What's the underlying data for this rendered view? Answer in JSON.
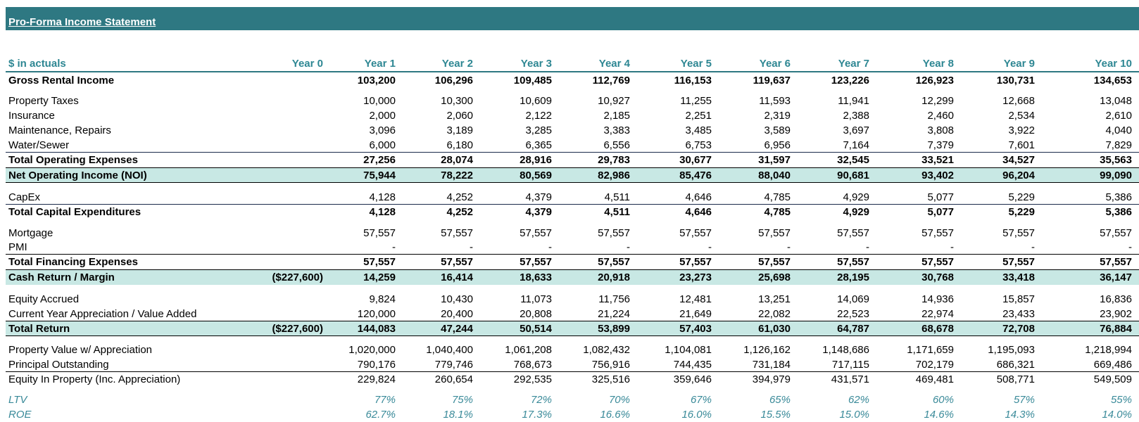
{
  "title": "Pro-Forma Income Statement",
  "header": {
    "label": "$ in actuals",
    "years": [
      "Year 0",
      "Year 1",
      "Year 2",
      "Year 3",
      "Year 4",
      "Year 5",
      "Year 6",
      "Year 7",
      "Year 8",
      "Year 9",
      "Year 10"
    ]
  },
  "rows": [
    {
      "key": "gross_rental_income",
      "label": "Gross Rental Income",
      "values": [
        "",
        "103,200",
        "106,296",
        "109,485",
        "112,769",
        "116,153",
        "119,637",
        "123,226",
        "126,923",
        "130,731",
        "134,653"
      ]
    },
    {
      "key": "property_taxes",
      "label": "Property Taxes",
      "values": [
        "",
        "10,000",
        "10,300",
        "10,609",
        "10,927",
        "11,255",
        "11,593",
        "11,941",
        "12,299",
        "12,668",
        "13,048"
      ]
    },
    {
      "key": "insurance",
      "label": "Insurance",
      "values": [
        "",
        "2,000",
        "2,060",
        "2,122",
        "2,185",
        "2,251",
        "2,319",
        "2,388",
        "2,460",
        "2,534",
        "2,610"
      ]
    },
    {
      "key": "maintenance_repairs",
      "label": "Maintenance, Repairs",
      "values": [
        "",
        "3,096",
        "3,189",
        "3,285",
        "3,383",
        "3,485",
        "3,589",
        "3,697",
        "3,808",
        "3,922",
        "4,040"
      ]
    },
    {
      "key": "water_sewer",
      "label": "Water/Sewer",
      "values": [
        "",
        "6,000",
        "6,180",
        "6,365",
        "6,556",
        "6,753",
        "6,956",
        "7,164",
        "7,379",
        "7,601",
        "7,829"
      ]
    },
    {
      "key": "total_operating_expenses",
      "label": "Total Operating Expenses",
      "values": [
        "",
        "27,256",
        "28,074",
        "28,916",
        "29,783",
        "30,677",
        "31,597",
        "32,545",
        "33,521",
        "34,527",
        "35,563"
      ]
    },
    {
      "key": "noi",
      "label": "Net Operating Income (NOI)",
      "values": [
        "",
        "75,944",
        "78,222",
        "80,569",
        "82,986",
        "85,476",
        "88,040",
        "90,681",
        "93,402",
        "96,204",
        "99,090"
      ]
    },
    {
      "key": "capex",
      "label": "CapEx",
      "values": [
        "",
        "4,128",
        "4,252",
        "4,379",
        "4,511",
        "4,646",
        "4,785",
        "4,929",
        "5,077",
        "5,229",
        "5,386"
      ]
    },
    {
      "key": "total_capex",
      "label": "Total Capital Expenditures",
      "values": [
        "",
        "4,128",
        "4,252",
        "4,379",
        "4,511",
        "4,646",
        "4,785",
        "4,929",
        "5,077",
        "5,229",
        "5,386"
      ]
    },
    {
      "key": "mortgage",
      "label": "Mortgage",
      "values": [
        "",
        "57,557",
        "57,557",
        "57,557",
        "57,557",
        "57,557",
        "57,557",
        "57,557",
        "57,557",
        "57,557",
        "57,557"
      ]
    },
    {
      "key": "pmi",
      "label": "PMI",
      "values": [
        "",
        "-",
        "-",
        "-",
        "-",
        "-",
        "-",
        "-",
        "-",
        "-",
        "-"
      ]
    },
    {
      "key": "total_financing",
      "label": "Total Financing Expenses",
      "values": [
        "",
        "57,557",
        "57,557",
        "57,557",
        "57,557",
        "57,557",
        "57,557",
        "57,557",
        "57,557",
        "57,557",
        "57,557"
      ]
    },
    {
      "key": "cash_return",
      "label": "Cash Return / Margin",
      "values": [
        "($227,600)",
        "14,259",
        "16,414",
        "18,633",
        "20,918",
        "23,273",
        "25,698",
        "28,195",
        "30,768",
        "33,418",
        "36,147"
      ]
    },
    {
      "key": "equity_accrued",
      "label": "Equity Accrued",
      "values": [
        "",
        "9,824",
        "10,430",
        "11,073",
        "11,756",
        "12,481",
        "13,251",
        "14,069",
        "14,936",
        "15,857",
        "16,836"
      ]
    },
    {
      "key": "appreciation",
      "label": "Current Year Appreciation / Value Added",
      "values": [
        "",
        "120,000",
        "20,400",
        "20,808",
        "21,224",
        "21,649",
        "22,082",
        "22,523",
        "22,974",
        "23,433",
        "23,902"
      ]
    },
    {
      "key": "total_return",
      "label": "Total Return",
      "values": [
        "($227,600)",
        "144,083",
        "47,244",
        "50,514",
        "53,899",
        "57,403",
        "61,030",
        "64,787",
        "68,678",
        "72,708",
        "76,884"
      ]
    },
    {
      "key": "property_value",
      "label": "Property Value w/ Appreciation",
      "values": [
        "",
        "1,020,000",
        "1,040,400",
        "1,061,208",
        "1,082,432",
        "1,104,081",
        "1,126,162",
        "1,148,686",
        "1,171,659",
        "1,195,093",
        "1,218,994"
      ]
    },
    {
      "key": "principal_outstanding",
      "label": "Principal Outstanding",
      "values": [
        "",
        "790,176",
        "779,746",
        "768,673",
        "756,916",
        "744,435",
        "731,184",
        "717,115",
        "702,179",
        "686,321",
        "669,486"
      ]
    },
    {
      "key": "equity_in_property",
      "label": "Equity In Property (Inc. Appreciation)",
      "values": [
        "",
        "229,824",
        "260,654",
        "292,535",
        "325,516",
        "359,646",
        "394,979",
        "431,571",
        "469,481",
        "508,771",
        "549,509"
      ]
    },
    {
      "key": "ltv",
      "label": "LTV",
      "values": [
        "",
        "77%",
        "75%",
        "72%",
        "70%",
        "67%",
        "65%",
        "62%",
        "60%",
        "57%",
        "55%"
      ]
    },
    {
      "key": "roe",
      "label": "ROE",
      "values": [
        "",
        "62.7%",
        "18.1%",
        "17.3%",
        "16.6%",
        "16.0%",
        "15.5%",
        "15.0%",
        "14.6%",
        "14.3%",
        "14.0%"
      ]
    }
  ],
  "colors": {
    "banner": "#2e7882",
    "header_text": "#2e8793",
    "highlight_band": "#c8e8e4",
    "ratio_text": "#3a8a99"
  }
}
